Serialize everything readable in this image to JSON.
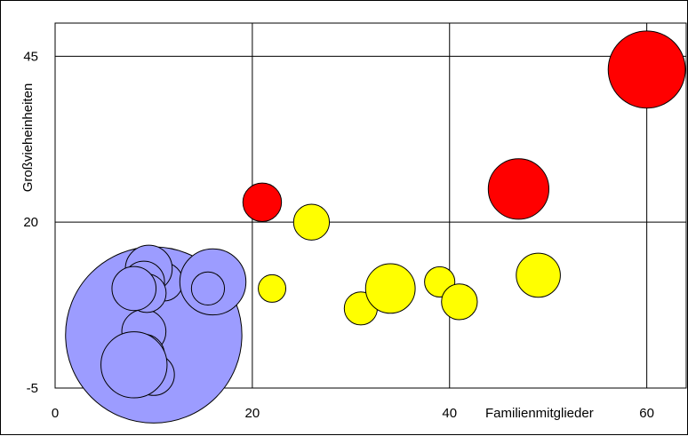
{
  "chart_data": {
    "type": "bubble",
    "title": "",
    "xlabel": "Familienmitglieder",
    "ylabel": "Großvieheinheiten",
    "xlim": [
      0,
      64
    ],
    "ylim": [
      -5,
      50
    ],
    "x_ticks": [
      0,
      20,
      40,
      60
    ],
    "y_ticks": [
      -5,
      20,
      45
    ],
    "x_tick_labels": [
      "0",
      "20",
      "40",
      "60"
    ],
    "y_tick_labels": [
      "-5",
      "20",
      "45"
    ],
    "grid": true,
    "legend": "none",
    "series": [
      {
        "color": "#9c9cff",
        "points": [
          {
            "x": 10,
            "y": 3,
            "size": 64
          },
          {
            "x": 10,
            "y": -3,
            "size": 15
          },
          {
            "x": 9,
            "y": 3.5,
            "size": 16
          },
          {
            "x": 9,
            "y": 0,
            "size": 15
          },
          {
            "x": 8,
            "y": -1.5,
            "size": 24
          },
          {
            "x": 11,
            "y": 11,
            "size": 14
          },
          {
            "x": 9.5,
            "y": 13,
            "size": 17
          },
          {
            "x": 9,
            "y": 11,
            "size": 15
          },
          {
            "x": 9.3,
            "y": 9.3,
            "size": 14
          },
          {
            "x": 8,
            "y": 10,
            "size": 16
          },
          {
            "x": 16,
            "y": 11,
            "size": 24
          },
          {
            "x": 15.5,
            "y": 10,
            "size": 12
          }
        ]
      },
      {
        "color": "#ffff00",
        "points": [
          {
            "x": 22,
            "y": 10,
            "size": 10
          },
          {
            "x": 26,
            "y": 20,
            "size": 13
          },
          {
            "x": 31,
            "y": 7,
            "size": 12
          },
          {
            "x": 34,
            "y": 10,
            "size": 18
          },
          {
            "x": 39,
            "y": 11,
            "size": 11
          },
          {
            "x": 41,
            "y": 8,
            "size": 13
          },
          {
            "x": 49,
            "y": 12,
            "size": 16
          }
        ]
      },
      {
        "color": "#ff0000",
        "points": [
          {
            "x": 21,
            "y": 23,
            "size": 14
          },
          {
            "x": 47,
            "y": 25,
            "size": 22
          },
          {
            "x": 60,
            "y": 43,
            "size": 28
          }
        ]
      }
    ]
  }
}
